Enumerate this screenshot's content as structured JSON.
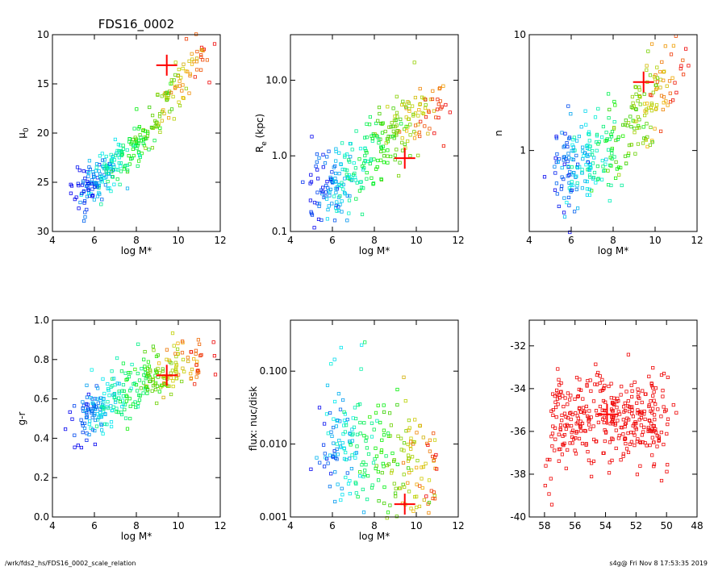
{
  "footer": {
    "path": "/wrk/fds2_hs/FDS16_0002_scale_relation",
    "stamp": "s4g@  Fri Nov  8 17:53:35 2019"
  },
  "colors": {
    "frame": "#000000",
    "highlight": "#ff0000"
  },
  "chart_data": [
    {
      "type": "scatter",
      "title": "FDS16_0002",
      "xlabel": "log M*",
      "ylabel": "μ",
      "ylabel_sub": "0",
      "xlim": [
        4,
        12
      ],
      "ylim": [
        30,
        10
      ],
      "xticks": [
        4,
        6,
        8,
        10,
        12
      ],
      "yticks": [
        10,
        15,
        20,
        25,
        30
      ],
      "ytick_labels": [
        "10",
        "15",
        "20",
        "25",
        "30"
      ],
      "y_scale": "linear",
      "cloud": {
        "trend": [
          [
            5.5,
            25.6
          ],
          [
            6.5,
            24.2
          ],
          [
            7.5,
            22.6
          ],
          [
            8.5,
            20.2
          ],
          [
            9.8,
            15.5
          ],
          [
            11.2,
            12.0
          ]
        ],
        "spread": 1.2,
        "count": 320
      },
      "highlight": {
        "x": 9.45,
        "y": 13.1
      }
    },
    {
      "type": "scatter",
      "title": "",
      "xlabel": "log M*",
      "ylabel": "R",
      "ylabel_sub": "e",
      "ylabel_suffix": " (kpc)",
      "xlim": [
        4,
        12
      ],
      "ylim": [
        0.1,
        40
      ],
      "xticks": [
        4,
        6,
        8,
        10,
        12
      ],
      "yticks": [
        0.1,
        1.0,
        10.0
      ],
      "ytick_labels": [
        "0.1",
        "1.0",
        "10.0"
      ],
      "y_scale": "log",
      "cloud": {
        "trend": [
          [
            5.5,
            0.35
          ],
          [
            6.5,
            0.55
          ],
          [
            7.5,
            0.9
          ],
          [
            8.5,
            1.5
          ],
          [
            9.5,
            2.8
          ],
          [
            11.0,
            5.5
          ]
        ],
        "spread": 0.25,
        "count": 320
      },
      "highlight": {
        "x": 9.45,
        "y": 0.93
      }
    },
    {
      "type": "scatter",
      "title": "",
      "xlabel": "log M*",
      "ylabel": "n",
      "xlim": [
        4,
        12
      ],
      "ylim": [
        0.2,
        10
      ],
      "xticks": [
        4,
        6,
        8,
        10,
        12
      ],
      "yticks": [
        1,
        10
      ],
      "ytick_labels": [
        "1",
        "10"
      ],
      "y_scale": "log",
      "cloud": {
        "trend": [
          [
            5.5,
            0.6
          ],
          [
            6.5,
            0.8
          ],
          [
            7.5,
            1.0
          ],
          [
            8.5,
            1.3
          ],
          [
            9.8,
            2.5
          ],
          [
            11.2,
            4.5
          ]
        ],
        "spread": 0.2,
        "count": 320
      },
      "highlight": {
        "x": 9.45,
        "y": 3.9
      }
    },
    {
      "type": "scatter",
      "title": "",
      "xlabel": "log M*",
      "ylabel": "g-r",
      "xlim": [
        4,
        12
      ],
      "ylim": [
        0.0,
        1.0
      ],
      "xticks": [
        4,
        6,
        8,
        10,
        12
      ],
      "yticks": [
        0.0,
        0.2,
        0.4,
        0.6,
        0.8,
        1.0
      ],
      "ytick_labels": [
        "0.0",
        "0.2",
        "0.4",
        "0.6",
        "0.8",
        "1.0"
      ],
      "y_scale": "linear",
      "cloud": {
        "trend": [
          [
            5.5,
            0.5
          ],
          [
            6.5,
            0.57
          ],
          [
            7.5,
            0.64
          ],
          [
            8.5,
            0.69
          ],
          [
            9.8,
            0.74
          ],
          [
            11.2,
            0.8
          ]
        ],
        "spread": 0.07,
        "count": 320
      },
      "highlight": {
        "x": 9.45,
        "y": 0.72
      }
    },
    {
      "type": "scatter",
      "title": "",
      "xlabel": "log M*",
      "ylabel": "flux: nuc/disk",
      "xlim": [
        4,
        12
      ],
      "ylim": [
        0.001,
        0.5
      ],
      "xticks": [
        4,
        6,
        8,
        10,
        12
      ],
      "yticks": [
        0.001,
        0.01,
        0.1
      ],
      "ytick_labels": [
        "0.001",
        "0.010",
        "0.100"
      ],
      "y_scale": "log",
      "cloud": {
        "trend": [
          [
            5.8,
            0.01
          ],
          [
            6.8,
            0.012
          ],
          [
            7.8,
            0.008
          ],
          [
            8.8,
            0.006
          ],
          [
            10.0,
            0.005
          ],
          [
            11.0,
            0.004
          ]
        ],
        "spread": 0.45,
        "count": 260
      },
      "highlight": {
        "x": 9.45,
        "y": 0.0015
      }
    },
    {
      "type": "scatter",
      "title": "",
      "xlabel": "",
      "ylabel": "",
      "xlim": [
        59,
        48
      ],
      "ylim": [
        -40,
        -30.8
      ],
      "xticks": [
        58,
        56,
        54,
        52,
        50,
        48
      ],
      "yticks": [
        -40,
        -38,
        -36,
        -34,
        -32
      ],
      "ytick_labels": [
        "-40",
        "-38",
        "-36",
        "-34",
        "-32"
      ],
      "y_scale": "linear",
      "cloud": {
        "trend": [
          [
            57.5,
            -35.5
          ],
          [
            55.5,
            -35.2
          ],
          [
            54.0,
            -35.3
          ],
          [
            52.5,
            -35.6
          ],
          [
            51.0,
            -36.6
          ],
          [
            50.0,
            -37.2
          ]
        ],
        "spread": 1.0,
        "count": 360
      },
      "highlight": {
        "x": 53.9,
        "y": -35.2
      }
    }
  ]
}
